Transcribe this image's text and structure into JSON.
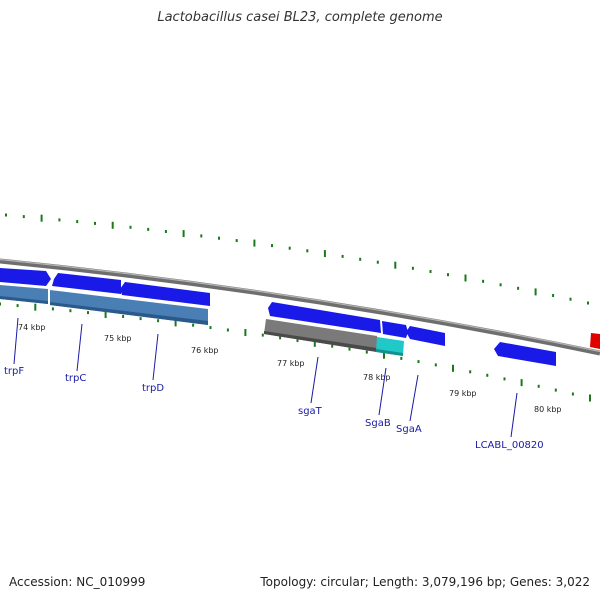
{
  "title": "Lactobacillus casei BL23, complete genome",
  "accession": "Accession: NC_010999",
  "summary": "Topology: circular; Length: 3,079,196 bp; Genes: 3,022",
  "colors": {
    "forward_gene": "#1010e0",
    "reverse_gene": "#4a7fb5",
    "grey_gene": "#7a7a7a",
    "cyan_gene": "#20c8c8",
    "red_gene": "#e00000",
    "gc_ticks": "#1a7a1a",
    "label": "#1a1aa6",
    "backbone": "#8a8a8a"
  },
  "ticks": [
    {
      "label": "74 kbp"
    },
    {
      "label": "75 kbp"
    },
    {
      "label": "76 kbp"
    },
    {
      "label": "77 kbp"
    },
    {
      "label": "78 kbp"
    },
    {
      "label": "79 kbp"
    },
    {
      "label": "80 kbp"
    }
  ],
  "genes": [
    {
      "label": "trpF"
    },
    {
      "label": "trpC"
    },
    {
      "label": "trpD"
    },
    {
      "label": "sgaT"
    },
    {
      "label": "SgaB"
    },
    {
      "label": "SgaA"
    },
    {
      "label": "LCABL_00820"
    }
  ]
}
